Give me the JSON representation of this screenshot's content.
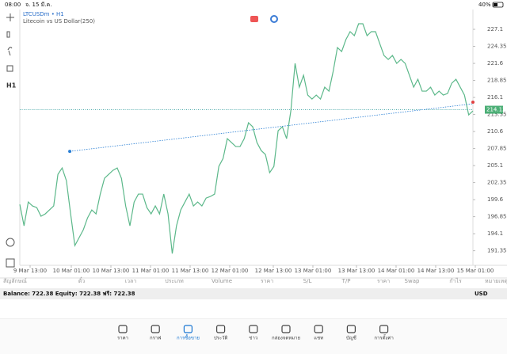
{
  "status": {
    "time": "08:00",
    "date": "จ. 15 มี.ค.",
    "battery": "40%"
  },
  "chart_data": {
    "type": "line",
    "title": "LTCUSDm • H1",
    "subtitle": "Litecoin vs US Dollar(250)",
    "series": [
      {
        "name": "LTCUSDm",
        "color": "#5cb88a",
        "values": [
          198.83,
          195.38,
          199.22,
          198.58,
          198.32,
          196.92,
          197.3,
          197.94,
          198.58,
          203.69,
          204.72,
          202.67,
          197.3,
          192.18,
          193.46,
          194.74,
          196.66,
          197.94,
          197.3,
          200.5,
          203.05,
          203.69,
          204.33,
          204.72,
          203.05,
          198.58,
          195.38,
          199.22,
          200.5,
          200.5,
          198.32,
          197.3,
          198.58,
          197.3,
          200.5,
          197.3,
          190.9,
          195.38,
          197.94,
          199.22,
          200.5,
          198.58,
          199.22,
          198.58,
          199.86,
          200.11,
          200.5,
          204.97,
          206.25,
          209.45,
          208.81,
          208.17,
          208.17,
          209.45,
          212.01,
          211.37,
          208.81,
          207.53,
          206.89,
          203.95,
          204.97,
          210.73,
          211.37,
          209.45,
          213.93,
          221.6,
          217.76,
          219.68,
          216.48,
          215.84,
          216.48,
          215.84,
          217.76,
          217.12,
          220.32,
          224.16,
          223.52,
          225.44,
          226.72,
          226.08,
          228.0,
          228.0,
          226.08,
          226.72,
          226.72,
          224.8,
          222.88,
          222.24,
          222.88,
          221.6,
          222.24,
          221.6,
          219.68,
          217.76,
          219.04,
          217.12,
          217.12,
          217.76,
          216.48,
          217.12,
          216.48,
          216.74,
          218.4,
          219.04,
          217.76,
          216.48,
          213.29,
          213.93
        ]
      }
    ],
    "xlim": [
      0,
      107
    ],
    "ylim": [
      189.0,
      230.3
    ],
    "xticks": [
      {
        "value": 2.43,
        "label": "9 Mar 13:00"
      },
      {
        "value": 12.16,
        "label": "10 Mar 01:00"
      },
      {
        "value": 21.51,
        "label": "10 Mar 13:00"
      },
      {
        "value": 30.86,
        "label": "11 Mar 01:00"
      },
      {
        "value": 40.22,
        "label": "11 Mar 13:00"
      },
      {
        "value": 49.57,
        "label": "12 Mar 01:00"
      },
      {
        "value": 59.86,
        "label": "12 Mar 13:00"
      },
      {
        "value": 69.21,
        "label": "13 Mar 01:00"
      },
      {
        "value": 79.5,
        "label": "13 Mar 13:00"
      },
      {
        "value": 88.85,
        "label": "14 Mar 01:00"
      },
      {
        "value": 98.2,
        "label": "14 Mar 13:00"
      },
      {
        "value": 107.56,
        "label": "15 Mar 01:00"
      }
    ],
    "yticks": [
      191.35,
      194.1,
      {
        "value": 196.85,
        "label": "196.85"
      },
      199.6,
      202.35,
      205.1,
      207.85,
      210.6,
      213.35,
      216.1,
      218.85,
      221.6,
      224.35,
      227.1
    ],
    "current_price": 214.12,
    "current_color": "#4caf76",
    "trendline": {
      "x": [
        11.8,
        107
      ],
      "y": [
        207.4,
        215.08
      ],
      "color": "#2a7fd4"
    },
    "grid": false
  },
  "trade_table": {
    "columns": [
      "สัญลักษณ์",
      "ตั๋ว",
      "เวลา",
      "ประเภท",
      "Volume",
      "ราคา",
      "S/L",
      "T/P",
      "ราคา",
      "Swap",
      "กำไร",
      "หมายเหตุ"
    ]
  },
  "balance": {
    "text": "Balance: 722.38 Equity: 722.38 ฟรี: 722.38",
    "currency": "USD"
  },
  "tabs": [
    "ราคา",
    "กราฟ",
    "การซื้อขาย",
    "ประวัติ",
    "ข่าว",
    "กล่องจดหมาย",
    "แชท",
    "บัญชี",
    "การตั้งค่า"
  ],
  "active_tab": 2
}
